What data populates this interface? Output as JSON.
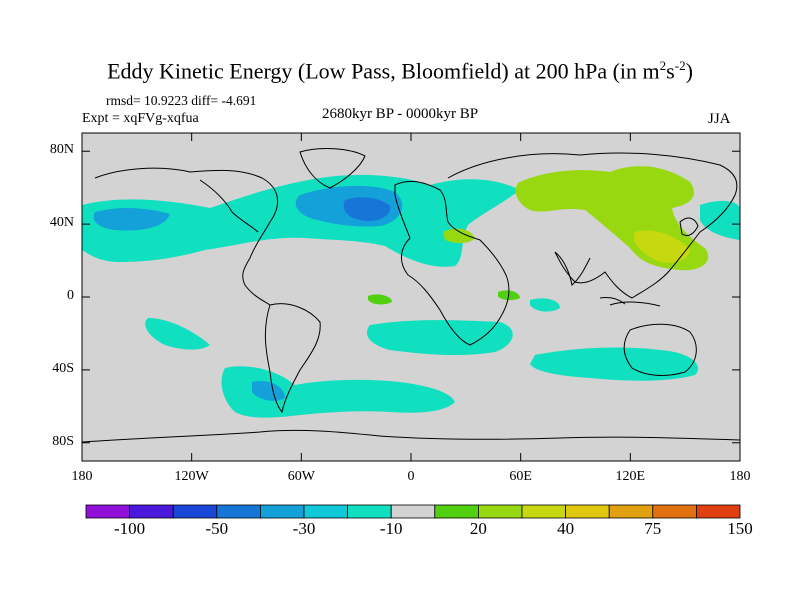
{
  "title": {
    "main": "Eddy Kinetic Energy (Low Pass, Bloomfield) at 200 hPa (in m",
    "sup1": "2",
    "mid": "s",
    "sup2": "-2",
    "end": ")"
  },
  "stats": "rmsd= 10.9223 diff= -4.691",
  "expt": "Expt = xqFVg-xqfua",
  "period": "2680kyr BP - 0000kyr BP",
  "season": "JJA",
  "map": {
    "projection": "cylindrical equidistant",
    "lon_range": [
      -180,
      180
    ],
    "lat_range": [
      -90,
      90
    ],
    "lat_ticks": [
      {
        "lat": 80,
        "label": "80N"
      },
      {
        "lat": 40,
        "label": "40N"
      },
      {
        "lat": 0,
        "label": "0"
      },
      {
        "lat": -40,
        "label": "40S"
      },
      {
        "lat": -80,
        "label": "80S"
      }
    ],
    "lon_ticks": [
      {
        "lon": -180,
        "label": "180"
      },
      {
        "lon": -120,
        "label": "120W"
      },
      {
        "lon": -60,
        "label": "60W"
      },
      {
        "lon": 0,
        "label": "0"
      },
      {
        "lon": 60,
        "label": "60E"
      },
      {
        "lon": 120,
        "label": "120E"
      },
      {
        "lon": 180,
        "label": "180"
      }
    ],
    "background_color": "#d3d3d3"
  },
  "colorbar": {
    "colors": [
      "#9010d8",
      "#4a19dc",
      "#1a47d8",
      "#1875d8",
      "#14a0d8",
      "#10c8d8",
      "#10e0c0",
      "#d3d3d3",
      "#50d010",
      "#98d810",
      "#c8d810",
      "#e0c810",
      "#e0a010",
      "#e07010",
      "#e04010"
    ],
    "labels": [
      {
        "boundary": 1,
        "text": "-100"
      },
      {
        "boundary": 3,
        "text": "-50"
      },
      {
        "boundary": 5,
        "text": "-30"
      },
      {
        "boundary": 7,
        "text": "-10"
      },
      {
        "boundary": 9,
        "text": "20"
      },
      {
        "boundary": 11,
        "text": "40"
      },
      {
        "boundary": 13,
        "text": "75"
      },
      {
        "boundary": 15,
        "text": "150"
      }
    ]
  },
  "anomaly_regions": [
    {
      "name": "north-atlantic",
      "level": -30,
      "color": "#10e0c0"
    },
    {
      "name": "north-atlantic-core",
      "level": -50,
      "color": "#1875d8"
    },
    {
      "name": "east-asia",
      "level": 20,
      "color": "#98d810"
    },
    {
      "name": "southern-ocean",
      "level": -30,
      "color": "#10e0c0"
    }
  ]
}
